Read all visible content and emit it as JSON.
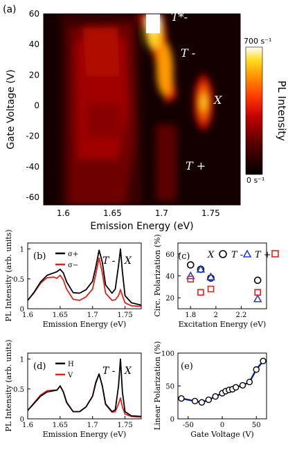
{
  "colors": {
    "sigma_plus": "#000000",
    "sigma_minus": "#e8201a",
    "H": "#000000",
    "V": "#e8201a",
    "X_marker": "#000000",
    "Tminus_marker": "#1f3fd6",
    "Tplus_marker": "#e8201a",
    "lin_pol_line": "#1a3fe0"
  },
  "chart_data": [
    {
      "id": "a",
      "type": "heatmap",
      "panel_label": "(a)",
      "xlabel": "Emission Energy (eV)",
      "ylabel": "Gate Voltage (V)",
      "xlim": [
        1.58,
        1.78
      ],
      "ylim": [
        -65,
        60
      ],
      "xticks": [
        "1.6",
        "1.65",
        "1.7",
        "1.75"
      ],
      "yticks": [
        "60",
        "40",
        "20",
        "0",
        "-20",
        "-40",
        "-60"
      ],
      "colorbar": {
        "label": "PL Intensity",
        "max_label": "700 s⁻¹",
        "min_label": "0 s⁻¹"
      },
      "annotations": [
        {
          "text": "T*-",
          "energy": 1.712,
          "voltage": 54
        },
        {
          "text": "T -",
          "energy": 1.711,
          "voltage": 33
        },
        {
          "text": "X",
          "energy": 1.758,
          "voltage": 0
        },
        {
          "text": "T +",
          "energy": 1.713,
          "voltage": -42
        }
      ]
    },
    {
      "id": "b",
      "type": "line",
      "panel_label": "(b)",
      "xlabel": "Emission Energy (eV)",
      "ylabel": "PL Intensity (arb. units)",
      "xlim": [
        1.6,
        1.775
      ],
      "ylim": [
        0,
        1.1
      ],
      "xticks": [
        "1.6",
        "1.65",
        "1.7",
        "1.75"
      ],
      "yticks": [
        "0",
        "0.5",
        "1"
      ],
      "legend": [
        "σ+",
        "σ−"
      ],
      "peak_labels": [
        "T -",
        "X"
      ],
      "series": [
        {
          "name": "σ+",
          "x": [
            1.6,
            1.61,
            1.62,
            1.63,
            1.64,
            1.645,
            1.65,
            1.655,
            1.66,
            1.67,
            1.68,
            1.69,
            1.7,
            1.705,
            1.71,
            1.715,
            1.72,
            1.73,
            1.735,
            1.74,
            1.743,
            1.746,
            1.75,
            1.76,
            1.775
          ],
          "y": [
            0.14,
            0.28,
            0.45,
            0.56,
            0.6,
            0.62,
            0.66,
            0.6,
            0.45,
            0.27,
            0.26,
            0.32,
            0.46,
            0.7,
            0.98,
            0.78,
            0.4,
            0.26,
            0.33,
            0.72,
            1.0,
            0.62,
            0.22,
            0.1,
            0.06
          ]
        },
        {
          "name": "σ−",
          "x": [
            1.6,
            1.61,
            1.62,
            1.63,
            1.64,
            1.645,
            1.65,
            1.655,
            1.66,
            1.67,
            1.68,
            1.69,
            1.7,
            1.705,
            1.71,
            1.715,
            1.72,
            1.73,
            1.735,
            1.74,
            1.743,
            1.746,
            1.75,
            1.76,
            1.775
          ],
          "y": [
            0.14,
            0.27,
            0.43,
            0.52,
            0.53,
            0.51,
            0.56,
            0.48,
            0.33,
            0.16,
            0.14,
            0.2,
            0.33,
            0.58,
            0.85,
            0.6,
            0.26,
            0.14,
            0.15,
            0.22,
            0.32,
            0.22,
            0.1,
            0.05,
            0.04
          ]
        }
      ]
    },
    {
      "id": "c",
      "type": "scatter",
      "panel_label": "(c)",
      "xlabel": "Excitation Energy (eV)",
      "ylabel": "Circ. Polarization (%)",
      "xlim": [
        1.7,
        2.4
      ],
      "ylim": [
        10,
        70
      ],
      "xticks": [
        "1.8",
        "2",
        "2.2"
      ],
      "yticks": [
        "20",
        "40",
        "60"
      ],
      "legend": [
        "X",
        "T -",
        "T +"
      ],
      "series": [
        {
          "name": "X",
          "marker": "circle",
          "x": [
            1.8,
            1.88,
            1.96,
            2.33
          ],
          "y": [
            50,
            46,
            38,
            36
          ]
        },
        {
          "name": "T -",
          "marker": "triangle",
          "x": [
            1.8,
            1.88,
            1.96,
            2.33
          ],
          "y": [
            40,
            46,
            39,
            19
          ]
        },
        {
          "name": "T +",
          "marker": "square",
          "x": [
            1.8,
            1.88,
            1.96,
            2.33
          ],
          "y": [
            37,
            25,
            28,
            25
          ]
        }
      ]
    },
    {
      "id": "d",
      "type": "line",
      "panel_label": "(d)",
      "xlabel": "Emission Energy (eV)",
      "ylabel": "PL Intensity (arb. units)",
      "xlim": [
        1.6,
        1.775
      ],
      "ylim": [
        0,
        1.1
      ],
      "xticks": [
        "1.6",
        "1.65",
        "1.7",
        "1.75"
      ],
      "yticks": [
        "0",
        "0.5",
        "1"
      ],
      "legend": [
        "H",
        "V"
      ],
      "peak_labels": [
        "T -",
        "X"
      ],
      "series": [
        {
          "name": "H",
          "x": [
            1.6,
            1.61,
            1.62,
            1.63,
            1.64,
            1.645,
            1.65,
            1.655,
            1.66,
            1.67,
            1.68,
            1.69,
            1.7,
            1.705,
            1.71,
            1.715,
            1.72,
            1.73,
            1.735,
            1.74,
            1.743,
            1.746,
            1.75,
            1.76,
            1.775
          ],
          "y": [
            0.14,
            0.26,
            0.38,
            0.45,
            0.47,
            0.48,
            0.55,
            0.45,
            0.28,
            0.12,
            0.12,
            0.2,
            0.38,
            0.6,
            0.75,
            0.55,
            0.25,
            0.12,
            0.15,
            0.55,
            1.0,
            0.45,
            0.12,
            0.05,
            0.04
          ]
        },
        {
          "name": "V",
          "x": [
            1.6,
            1.61,
            1.62,
            1.63,
            1.64,
            1.645,
            1.65,
            1.655,
            1.66,
            1.67,
            1.68,
            1.69,
            1.7,
            1.705,
            1.71,
            1.715,
            1.72,
            1.73,
            1.735,
            1.74,
            1.743,
            1.746,
            1.75,
            1.76,
            1.775
          ],
          "y": [
            0.14,
            0.27,
            0.4,
            0.47,
            0.48,
            0.48,
            0.55,
            0.45,
            0.27,
            0.12,
            0.12,
            0.2,
            0.38,
            0.62,
            0.75,
            0.55,
            0.24,
            0.11,
            0.12,
            0.25,
            0.35,
            0.2,
            0.08,
            0.04,
            0.03
          ]
        }
      ]
    },
    {
      "id": "e",
      "type": "line",
      "panel_label": "(e)",
      "xlabel": "Gate Voltage (V)",
      "ylabel": "Linear Polarization (%)",
      "xlim": [
        -65,
        65
      ],
      "ylim": [
        0,
        100
      ],
      "xticks": [
        "-50",
        "0",
        "50"
      ],
      "yticks": [
        "0",
        "50",
        "100"
      ],
      "series": [
        {
          "name": "",
          "x": [
            -60,
            -40,
            -30,
            -20,
            -10,
            0,
            5,
            10,
            15,
            20,
            30,
            40,
            50,
            60
          ],
          "y": [
            31,
            27,
            25,
            29,
            34,
            39,
            42,
            44,
            45,
            48,
            51,
            56,
            75,
            88
          ]
        }
      ]
    }
  ]
}
